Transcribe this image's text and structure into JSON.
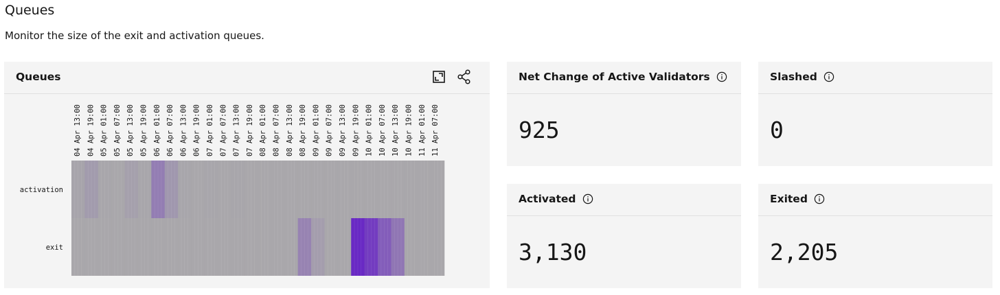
{
  "page": {
    "title": "Queues",
    "description": "Monitor the size of the exit and activation queues."
  },
  "chart_tile": {
    "title": "Queues",
    "toolbar": {
      "expand_icon": "maximize-icon",
      "share_icon": "share-icon"
    }
  },
  "chart_data": {
    "type": "heatmap",
    "rows": [
      "activation",
      "exit"
    ],
    "x_tick_labels": [
      "04 Apr 13:00",
      "04 Apr 19:00",
      "05 Apr 01:00",
      "05 Apr 07:00",
      "05 Apr 13:00",
      "05 Apr 19:00",
      "06 Apr 01:00",
      "06 Apr 07:00",
      "06 Apr 13:00",
      "06 Apr 19:00",
      "07 Apr 01:00",
      "07 Apr 07:00",
      "07 Apr 13:00",
      "07 Apr 19:00",
      "08 Apr 01:00",
      "08 Apr 07:00",
      "08 Apr 13:00",
      "08 Apr 19:00",
      "09 Apr 01:00",
      "09 Apr 07:00",
      "09 Apr 13:00",
      "09 Apr 19:00",
      "10 Apr 01:00",
      "10 Apr 07:00",
      "10 Apr 13:00",
      "10 Apr 19:00",
      "11 Apr 01:00",
      "11 Apr 07:00"
    ],
    "x_labels": [
      "04 Apr 13:00",
      "04 Apr 19:00",
      "05 Apr 01:00",
      "05 Apr 07:00",
      "05 Apr 13:00",
      "05 Apr 19:00",
      "06 Apr 01:00",
      "06 Apr 07:00",
      "06 Apr 13:00",
      "06 Apr 19:00",
      "07 Apr 01:00",
      "07 Apr 07:00",
      "07 Apr 13:00",
      "07 Apr 19:00",
      "08 Apr 01:00",
      "08 Apr 07:00",
      "08 Apr 13:00",
      "08 Apr 19:00",
      "09 Apr 01:00",
      "09 Apr 07:00",
      "09 Apr 13:00",
      "09 Apr 19:00",
      "10 Apr 01:00",
      "10 Apr 07:00",
      "10 Apr 13:00",
      "10 Apr 19:00",
      "11 Apr 01:00",
      "11 Apr 07:00"
    ],
    "values": [
      [
        0.05,
        0.12,
        0.03,
        0.02,
        0.08,
        0.03,
        0.35,
        0.15,
        0.03,
        0.02,
        0.03,
        0.02,
        0.03,
        0.02,
        0.02,
        0.02,
        0.02,
        0.02,
        0.02,
        0.02,
        0.02,
        0.02,
        0.02,
        0.02,
        0.02,
        0.02,
        0.02,
        0.02
      ],
      [
        0.02,
        0.02,
        0.02,
        0.02,
        0.02,
        0.02,
        0.02,
        0.02,
        0.02,
        0.02,
        0.02,
        0.02,
        0.02,
        0.02,
        0.02,
        0.02,
        0.02,
        0.3,
        0.1,
        0.02,
        0.02,
        1.0,
        0.85,
        0.6,
        0.4,
        0.02,
        0.02,
        0.02
      ]
    ],
    "color_low": "#aaaaaa",
    "color_high": "#6929c4",
    "legend": "none"
  },
  "kpis": [
    {
      "title": "Net Change of Active Validators",
      "value": "925"
    },
    {
      "title": "Slashed",
      "value": "0"
    },
    {
      "title": "Activated",
      "value": "3,130"
    },
    {
      "title": "Exited",
      "value": "2,205"
    }
  ]
}
